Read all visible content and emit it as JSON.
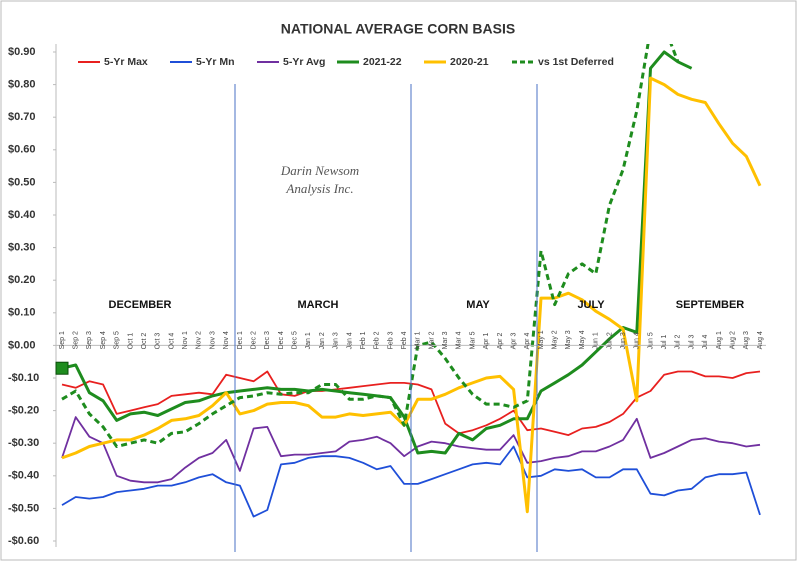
{
  "chart_data": {
    "type": "line",
    "title": "NATIONAL AVERAGE CORN BASIS",
    "annotations": [
      "DECEMBER",
      "MARCH",
      "MAY",
      "JULY",
      "SEPTEMBER"
    ],
    "watermark": [
      "Darin Newsom",
      "Analysis Inc."
    ],
    "categories": [
      "Sep 1",
      "Sep 2",
      "Sep 3",
      "Sep 4",
      "Sep 5",
      "Oct 1",
      "Oct 2",
      "Oct 3",
      "Oct 4",
      "Nov 1",
      "Nov 2",
      "Nov 3",
      "Nov 4",
      "Dec 1",
      "Dec 2",
      "Dec 3",
      "Dec 4",
      "Dec 5",
      "Jan 1",
      "Jan 2",
      "Jan 3",
      "Jan 4",
      "Feb 1",
      "Feb 2",
      "Feb 3",
      "Feb 4",
      "Mar 1",
      "Mar 2",
      "Mar 3",
      "Mar 4",
      "Mar 5",
      "Apr 1",
      "Apr 2",
      "Apr 3",
      "Apr 4",
      "May 1",
      "May 2",
      "May 3",
      "May 4",
      "Jun 1",
      "Jun 2",
      "Jun 3",
      "Jun 4",
      "Jun 5",
      "Jul 1",
      "Jul 2",
      "Jul 3",
      "Jul 4",
      "Aug 1",
      "Aug 2",
      "Aug 3",
      "Aug 4"
    ],
    "series": [
      {
        "name": "5-Yr Max",
        "color": "#e8201f",
        "values": [
          -0.12,
          -0.13,
          -0.11,
          -0.12,
          -0.21,
          -0.2,
          -0.19,
          -0.18,
          -0.155,
          -0.15,
          -0.145,
          -0.15,
          -0.09,
          -0.1,
          -0.11,
          -0.08,
          -0.15,
          -0.155,
          -0.14,
          -0.14,
          -0.135,
          -0.13,
          -0.125,
          -0.12,
          -0.115,
          -0.115,
          -0.12,
          -0.135,
          -0.24,
          -0.27,
          -0.26,
          -0.245,
          -0.225,
          -0.2,
          -0.26,
          -0.255,
          -0.265,
          -0.275,
          -0.255,
          -0.25,
          -0.235,
          -0.21,
          -0.16,
          -0.14,
          -0.09,
          -0.08,
          -0.08,
          -0.095,
          -0.095,
          -0.1,
          -0.085,
          -0.08
        ]
      },
      {
        "name": "5-Yr Mn",
        "color": "#1f4fd8",
        "values": [
          -0.49,
          -0.465,
          -0.47,
          -0.465,
          -0.45,
          -0.445,
          -0.44,
          -0.43,
          -0.43,
          -0.42,
          -0.405,
          -0.395,
          -0.42,
          -0.43,
          -0.525,
          -0.505,
          -0.365,
          -0.36,
          -0.345,
          -0.34,
          -0.34,
          -0.345,
          -0.36,
          -0.38,
          -0.37,
          -0.425,
          -0.425,
          -0.41,
          -0.395,
          -0.38,
          -0.365,
          -0.36,
          -0.365,
          -0.31,
          -0.405,
          -0.4,
          -0.38,
          -0.385,
          -0.38,
          -0.405,
          -0.405,
          -0.38,
          -0.38,
          -0.455,
          -0.46,
          -0.445,
          -0.44,
          -0.405,
          -0.395,
          -0.395,
          -0.39,
          -0.52
        ]
      },
      {
        "name": "5-Yr Avg",
        "color": "#7030a0",
        "values": [
          -0.345,
          -0.22,
          -0.28,
          -0.3,
          -0.4,
          -0.415,
          -0.42,
          -0.42,
          -0.41,
          -0.375,
          -0.345,
          -0.33,
          -0.29,
          -0.385,
          -0.255,
          -0.25,
          -0.34,
          -0.335,
          -0.335,
          -0.33,
          -0.325,
          -0.295,
          -0.29,
          -0.28,
          -0.3,
          -0.34,
          -0.31,
          -0.295,
          -0.3,
          -0.31,
          -0.315,
          -0.32,
          -0.32,
          -0.275,
          -0.36,
          -0.355,
          -0.345,
          -0.34,
          -0.325,
          -0.325,
          -0.31,
          -0.29,
          -0.225,
          -0.345,
          -0.33,
          -0.31,
          -0.29,
          -0.285,
          -0.295,
          -0.3,
          -0.31,
          -0.305
        ]
      },
      {
        "name": "2021-22",
        "color": "#1e8c1e",
        "values": [
          -0.07,
          -0.06,
          -0.145,
          -0.17,
          -0.23,
          -0.21,
          -0.205,
          -0.215,
          -0.195,
          -0.175,
          -0.17,
          -0.155,
          -0.145,
          -0.14,
          -0.135,
          -0.13,
          -0.135,
          -0.135,
          -0.14,
          -0.135,
          -0.14,
          -0.145,
          -0.15,
          -0.155,
          -0.16,
          -0.22,
          -0.33,
          -0.325,
          -0.33,
          -0.27,
          -0.29,
          -0.255,
          -0.245,
          -0.225,
          -0.225,
          -0.14,
          -0.115,
          -0.09,
          -0.06,
          -0.02,
          0.02,
          0.055,
          0.04,
          0.85,
          0.9,
          0.87,
          0.85,
          null,
          null,
          null,
          null,
          null
        ]
      },
      {
        "name": "2020-21",
        "color": "#ffc000",
        "values": [
          -0.345,
          -0.33,
          -0.31,
          -0.3,
          -0.29,
          -0.29,
          -0.275,
          -0.255,
          -0.23,
          -0.225,
          -0.215,
          -0.185,
          -0.145,
          -0.21,
          -0.2,
          -0.18,
          -0.175,
          -0.175,
          -0.185,
          -0.22,
          -0.22,
          -0.21,
          -0.215,
          -0.21,
          -0.205,
          -0.245,
          -0.165,
          -0.165,
          -0.15,
          -0.13,
          -0.115,
          -0.1,
          -0.095,
          -0.135,
          -0.51,
          0.145,
          0.145,
          0.16,
          0.14,
          0.105,
          0.08,
          0.05,
          -0.17,
          0.82,
          0.8,
          0.77,
          0.755,
          0.745,
          0.68,
          0.62,
          0.58,
          0.49
        ]
      },
      {
        "name": "vs 1st Deferred",
        "color": "#1e8c1e",
        "dashed": true,
        "values": [
          -0.165,
          -0.14,
          -0.21,
          -0.25,
          -0.31,
          -0.3,
          -0.29,
          -0.3,
          -0.27,
          -0.265,
          -0.24,
          -0.21,
          -0.185,
          -0.16,
          -0.155,
          -0.145,
          -0.15,
          -0.145,
          -0.145,
          -0.12,
          -0.12,
          -0.165,
          -0.165,
          -0.155,
          -0.16,
          -0.245,
          0.0,
          0.01,
          -0.04,
          -0.1,
          -0.15,
          -0.18,
          -0.18,
          -0.19,
          -0.17,
          0.29,
          0.125,
          0.22,
          0.25,
          0.22,
          0.43,
          0.54,
          0.72,
          0.97,
          0.98,
          0.87,
          null,
          null,
          null,
          null,
          null,
          null
        ]
      }
    ],
    "ylim": [
      -0.6,
      0.9
    ],
    "yticks": [
      {
        "value": 0.9,
        "label": "$0.90"
      },
      {
        "value": 0.8,
        "label": "$0.80"
      },
      {
        "value": 0.7,
        "label": "$0.70"
      },
      {
        "value": 0.6,
        "label": "$0.60"
      },
      {
        "value": 0.5,
        "label": "$0.50"
      },
      {
        "value": 0.4,
        "label": "$0.40"
      },
      {
        "value": 0.3,
        "label": "$0.30"
      },
      {
        "value": 0.2,
        "label": "$0.20"
      },
      {
        "value": 0.1,
        "label": "$0.10"
      },
      {
        "value": 0,
        "label": "$0.00"
      },
      {
        "value": -0.1,
        "label": "-$0.10"
      },
      {
        "value": -0.2,
        "label": "-$0.20"
      },
      {
        "value": -0.3,
        "label": "-$0.30"
      },
      {
        "value": -0.4,
        "label": "-$0.40"
      },
      {
        "value": -0.5,
        "label": "-$0.50"
      },
      {
        "value": -0.6,
        "label": "-$0.60"
      }
    ],
    "grid": false
  }
}
